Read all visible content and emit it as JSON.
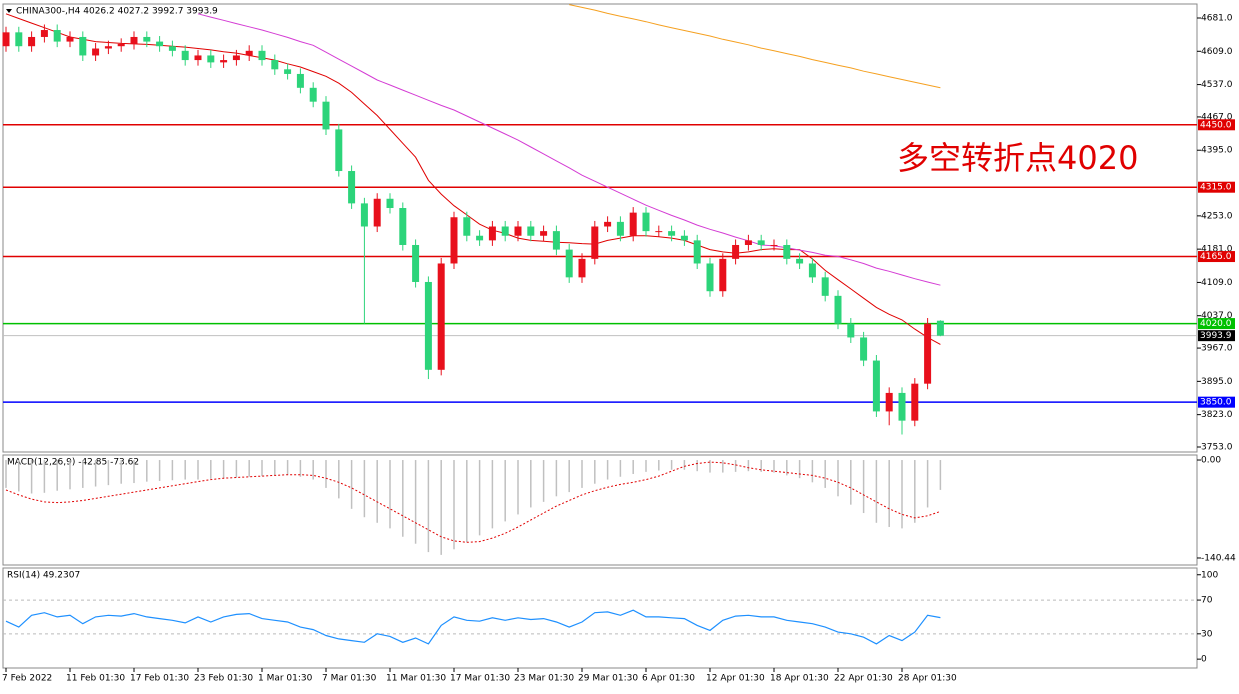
{
  "chart_data": [
    {
      "type": "candlestick",
      "title": "CHINA300-,H4  4026.2 4027.2 3992.7 3993.9",
      "annotation": "多空转折点4020",
      "categories": [
        "7 Feb 2022",
        null,
        null,
        null,
        null,
        "11 Feb 01:30",
        null,
        null,
        null,
        null,
        "17 Feb 01:30",
        null,
        null,
        null,
        null,
        "23 Feb 01:30",
        null,
        null,
        null,
        null,
        "1 Mar 01:30",
        null,
        null,
        null,
        null,
        "7 Mar 01:30",
        null,
        null,
        null,
        null,
        "11 Mar 01:30",
        null,
        null,
        null,
        null,
        "17 Mar 01:30",
        null,
        null,
        null,
        null,
        "23 Mar 01:30",
        null,
        null,
        null,
        null,
        "29 Mar 01:30",
        null,
        null,
        null,
        null,
        "6 Apr 01:30",
        null,
        null,
        null,
        null,
        "12 Apr 01:30",
        null,
        null,
        null,
        null,
        "18 Apr 01:30",
        null,
        null,
        null,
        null,
        "22 Apr 01:30",
        null,
        null,
        null,
        null,
        "28 Apr 01:30",
        null,
        null,
        null
      ],
      "open": [
        4620,
        4650,
        4620,
        4640,
        4655,
        4630,
        4640,
        4600,
        4615,
        4620,
        4625,
        4640,
        4630,
        4620,
        4610,
        4590,
        4600,
        4585,
        4590,
        4600,
        4610,
        4590,
        4570,
        4560,
        4530,
        4500,
        4440,
        4350,
        4280,
        4230,
        4290,
        4270,
        4190,
        4110,
        3920,
        4150,
        4250,
        4210,
        4200,
        4230,
        4210,
        4230,
        4210,
        4220,
        4180,
        4120,
        4160,
        4230,
        4240,
        4210,
        4260,
        4220,
        4220,
        4210,
        4200,
        4150,
        4090,
        4160,
        4190,
        4200,
        4190,
        4190,
        4160,
        4150,
        4120,
        4080,
        4020,
        3990,
        3940,
        3830,
        3870,
        3810,
        3890,
        4026.2
      ],
      "high": [
        4662,
        4662,
        4652,
        4667,
        4667,
        4652,
        4652,
        4627,
        4632,
        4637,
        4652,
        4652,
        4642,
        4632,
        4622,
        4612,
        4612,
        4602,
        4612,
        4622,
        4622,
        4602,
        4582,
        4572,
        4542,
        4512,
        4452,
        4362,
        4292,
        4302,
        4302,
        4282,
        4202,
        4122,
        4162,
        4262,
        4262,
        4222,
        4242,
        4242,
        4242,
        4242,
        4232,
        4232,
        4192,
        4172,
        4242,
        4252,
        4252,
        4272,
        4272,
        4232,
        4232,
        4222,
        4212,
        4162,
        4172,
        4202,
        4212,
        4212,
        4202,
        4202,
        4172,
        4162,
        4132,
        4092,
        4032,
        4002,
        3952,
        3882,
        3882,
        3902,
        4032,
        4027.2
      ],
      "low": [
        4608,
        4608,
        4608,
        4628,
        4618,
        4618,
        4588,
        4588,
        4603,
        4608,
        4613,
        4618,
        4608,
        4598,
        4578,
        4578,
        4573,
        4573,
        4578,
        4588,
        4578,
        4558,
        4548,
        4518,
        4488,
        4428,
        4338,
        4268,
        4020,
        4218,
        4258,
        4178,
        4098,
        3900,
        3908,
        4138,
        4198,
        4188,
        4188,
        4198,
        4198,
        4198,
        4198,
        4168,
        4108,
        4108,
        4148,
        4218,
        4198,
        4198,
        4208,
        4208,
        4198,
        4188,
        4138,
        4078,
        4078,
        4148,
        4178,
        4178,
        4178,
        4148,
        4138,
        4108,
        4068,
        4008,
        3978,
        3928,
        3818,
        3800,
        3780,
        3798,
        3878,
        3992.7
      ],
      "close": [
        4650,
        4620,
        4640,
        4655,
        4630,
        4640,
        4600,
        4615,
        4620,
        4625,
        4640,
        4630,
        4620,
        4610,
        4590,
        4600,
        4585,
        4590,
        4600,
        4610,
        4590,
        4570,
        4560,
        4530,
        4500,
        4440,
        4350,
        4280,
        4230,
        4290,
        4270,
        4190,
        4110,
        3920,
        4150,
        4250,
        4210,
        4200,
        4230,
        4210,
        4230,
        4210,
        4220,
        4180,
        4120,
        4160,
        4230,
        4240,
        4210,
        4260,
        4220,
        4220,
        4210,
        4200,
        4150,
        4090,
        4160,
        4190,
        4200,
        4190,
        4190,
        4160,
        4150,
        4120,
        4080,
        4020,
        3990,
        3940,
        3830,
        3870,
        3810,
        3890,
        4020,
        3993.9
      ],
      "up_color": "#e8101c",
      "down_color": "#2cd47a",
      "series": [
        {
          "color": "#e00000",
          "values": [
            4690,
            4680,
            4670,
            4660,
            4650,
            4640,
            4635,
            4630,
            4628,
            4626,
            4625,
            4624,
            4622,
            4620,
            4618,
            4615,
            4612,
            4608,
            4605,
            4600,
            4595,
            4590,
            4582,
            4575,
            4565,
            4555,
            4540,
            4520,
            4495,
            4470,
            4440,
            4410,
            4380,
            4330,
            4300,
            4275,
            4255,
            4235,
            4222,
            4215,
            4205,
            4200,
            4198,
            4196,
            4195,
            4193,
            4192,
            4200,
            4205,
            4210,
            4210,
            4208,
            4205,
            4200,
            4190,
            4180,
            4175,
            4172,
            4175,
            4180,
            4182,
            4180,
            4180,
            4160,
            4135,
            4115,
            4095,
            4075,
            4055,
            4040,
            4028,
            4008,
            3990,
            3975
          ]
        },
        {
          "color": "#d43cd4",
          "values": [
            null,
            null,
            null,
            null,
            null,
            null,
            null,
            null,
            null,
            null,
            null,
            null,
            null,
            null,
            null,
            4690,
            4683,
            4676,
            4669,
            4662,
            4655,
            4647,
            4639,
            4630,
            4622,
            4607,
            4592,
            4577,
            4562,
            4547,
            4536,
            4525,
            4514,
            4503,
            4492,
            4482,
            4469,
            4456,
            4443,
            4430,
            4417,
            4402,
            4387,
            4372,
            4357,
            4341,
            4328,
            4315,
            4302,
            4289,
            4276,
            4265,
            4254,
            4244,
            4233,
            4224,
            4216,
            4207,
            4199,
            4190,
            4188,
            4184,
            4179,
            4174,
            4168,
            4165,
            4158,
            4150,
            4140,
            4133,
            4125,
            4117,
            4110,
            4103
          ]
        },
        {
          "color": "#f5a020",
          "values": [
            null,
            null,
            null,
            null,
            null,
            null,
            null,
            null,
            null,
            null,
            null,
            null,
            null,
            null,
            null,
            null,
            null,
            null,
            null,
            null,
            null,
            null,
            null,
            null,
            null,
            null,
            null,
            null,
            null,
            null,
            null,
            null,
            null,
            null,
            null,
            null,
            null,
            null,
            null,
            null,
            null,
            null,
            null,
            null,
            4710,
            4704,
            4698,
            4691,
            4685,
            4679,
            4673,
            4666,
            4660,
            4654,
            4648,
            4642,
            4635,
            4629,
            4623,
            4616,
            4610,
            4604,
            4598,
            4591,
            4585,
            4579,
            4573,
            4566,
            4560,
            4554,
            4548,
            4542,
            4536,
            4530
          ]
        }
      ],
      "levels": [
        {
          "value": 4450,
          "label": "4450.0",
          "color": "#e00000"
        },
        {
          "value": 4315,
          "label": "4315.0",
          "color": "#e00000"
        },
        {
          "value": 4165,
          "label": "4165.0",
          "color": "#e00000"
        },
        {
          "value": 4020,
          "label": "4020.0",
          "color": "#00c000"
        },
        {
          "value": 3850,
          "label": "3850.0",
          "color": "#0000ff"
        }
      ],
      "last_price": {
        "value": 3993.9,
        "label": "3993.9"
      },
      "ylim": [
        3742.2,
        4711.3
      ],
      "yticks": [
        {
          "value": 4681,
          "label": "4681.0"
        },
        {
          "value": 4609,
          "label": "4609.0"
        },
        {
          "value": 4537,
          "label": "4537.0"
        },
        {
          "value": 4467,
          "label": "4467.0"
        },
        {
          "value": 4395,
          "label": "4395.0"
        },
        {
          "value": 4253,
          "label": "4253.0"
        },
        {
          "value": 4181,
          "label": "4181.0"
        },
        {
          "value": 4109,
          "label": "4109.0"
        },
        {
          "value": 4037,
          "label": "4037.0"
        },
        {
          "value": 3967,
          "label": "3967.0"
        },
        {
          "value": 3895,
          "label": "3895.0"
        },
        {
          "value": 3823,
          "label": "3823.0"
        },
        {
          "value": 3753,
          "label": "3753.0"
        }
      ]
    },
    {
      "type": "macd",
      "title": "MACD(12,26,9) -42.85 -73.62",
      "values": [
        -40,
        -45,
        -48,
        -47,
        -44,
        -42,
        -40,
        -38,
        -36,
        -34,
        -33,
        -31,
        -30,
        -29,
        -28,
        -28,
        -27,
        -26,
        -25,
        -24,
        -23,
        -22,
        -21,
        -24,
        -28,
        -40,
        -55,
        -70,
        -82,
        -90,
        -98,
        -110,
        -120,
        -132,
        -136,
        -128,
        -118,
        -108,
        -98,
        -88,
        -78,
        -68,
        -60,
        -52,
        -46,
        -40,
        -34,
        -28,
        -24,
        -20,
        -17,
        -15,
        -14,
        -14,
        -16,
        -18,
        -18,
        -17,
        -16,
        -17,
        -18,
        -22,
        -26,
        -32,
        -40,
        -52,
        -64,
        -76,
        -90,
        -96,
        -98,
        -90,
        -68,
        -42.85
      ],
      "signal": [
        -43,
        -50,
        -56,
        -60,
        -61,
        -60,
        -58,
        -55,
        -52,
        -49,
        -46,
        -43,
        -40,
        -37,
        -34,
        -31,
        -28,
        -26,
        -25,
        -24,
        -23,
        -22,
        -21,
        -21,
        -22,
        -26,
        -32,
        -40,
        -50,
        -60,
        -70,
        -80,
        -90,
        -100,
        -110,
        -116,
        -118,
        -117,
        -112,
        -105,
        -96,
        -86,
        -76,
        -66,
        -58,
        -50,
        -44,
        -39,
        -35,
        -32,
        -28,
        -23,
        -16,
        -9,
        -5,
        -3,
        -4,
        -7,
        -11,
        -14,
        -16,
        -18,
        -20,
        -22,
        -26,
        -32,
        -40,
        -50,
        -60,
        -70,
        -78,
        -83,
        -80,
        -73.62
      ],
      "color": "#c0c0c0",
      "signal_color": "#e00000",
      "ylim": [
        -150.5,
        7.2
      ],
      "yticks": [
        {
          "value": 0,
          "label": "0.00"
        },
        -140.44
      ]
    },
    {
      "type": "line",
      "title": "RSI(14) 49.2307",
      "values": [
        45,
        38,
        52,
        55,
        50,
        52,
        42,
        50,
        52,
        51,
        54,
        50,
        48,
        46,
        43,
        50,
        44,
        50,
        53,
        54,
        48,
        46,
        44,
        38,
        35,
        28,
        24,
        22,
        20,
        30,
        27,
        20,
        25,
        18,
        40,
        50,
        46,
        45,
        49,
        46,
        49,
        47,
        48,
        44,
        38,
        44,
        55,
        56,
        52,
        58,
        50,
        50,
        49,
        48,
        40,
        34,
        46,
        51,
        52,
        50,
        50,
        46,
        44,
        42,
        38,
        32,
        30,
        26,
        18,
        28,
        22,
        32,
        52,
        49.2307
      ],
      "color": "#1e90ff",
      "levels": [
        70,
        30
      ],
      "ylim": [
        -10.5,
        108
      ],
      "yticks": [
        100,
        70,
        30,
        0
      ]
    }
  ]
}
